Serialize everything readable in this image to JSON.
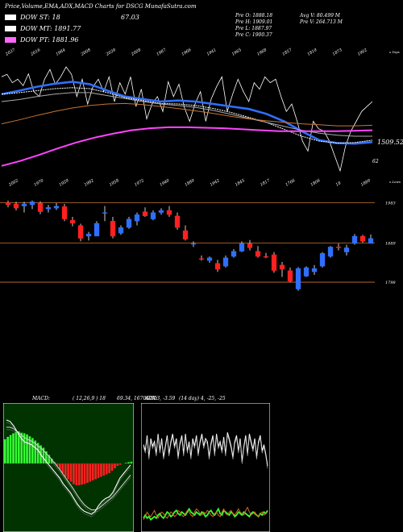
{
  "header": {
    "title": "Price,Volume,EMA,ADX,MACD Charts for DSCG MunafaSutra.com",
    "adx_value": "67.03",
    "ema_lines": [
      {
        "label": "DOW ST: 18",
        "color": "#ffffff"
      },
      {
        "label": "DOW MT: 1891.77",
        "color": "#ffffff"
      },
      {
        "label": "DOW PT: 1881.96",
        "color": "#ff66ff"
      }
    ],
    "ohlc": [
      "Pre   O: 1888.18",
      "Pre   H: 1909.01",
      "Pre   L: 1887.97",
      "Pre   C: 1900.37"
    ],
    "volume": [
      "Avg V: 80.499 M",
      "Pre   V: 264.713 M"
    ]
  },
  "chart_data": [
    {
      "type": "line",
      "title": "",
      "top_tick_labels": [
        "2037",
        "2016",
        "1984",
        "2008",
        "2039",
        "2008",
        "1987",
        "1966",
        "1941",
        "1965",
        "1968",
        "1857",
        "1819",
        "1873",
        "1902"
      ],
      "bottom_tick_labels": [
        "2002",
        "1970",
        "1929",
        "1982",
        "1958",
        "1972",
        "1940",
        "1889",
        "1942",
        "1845",
        "1817",
        "1766",
        "1806",
        "18",
        "1889"
      ],
      "corner_labels": [
        "1509.52",
        "62"
      ],
      "edge_labels": [
        "s Tops",
        "s Lows"
      ],
      "series": [
        {
          "color": "#ffffff",
          "values": [
            1990,
            1995,
            1978,
            1985,
            1972,
            1996,
            1960,
            1950,
            1985,
            2005,
            1975,
            1990,
            2010,
            1995,
            1950,
            1985,
            1935,
            1970,
            1985,
            1960,
            1990,
            1940,
            1978,
            1955,
            1990,
            1930,
            1965,
            1905,
            1935,
            1950,
            1920,
            1980,
            1950,
            1975,
            1928,
            1900,
            1935,
            1960,
            1900,
            1945,
            1970,
            1990,
            1920,
            1955,
            1985,
            1960,
            1940,
            1978,
            1965,
            1990,
            1978,
            1985,
            1950,
            1920,
            1935,
            1900,
            1860,
            1840,
            1900,
            1885,
            1880,
            1860,
            1830,
            1800,
            1850,
            1880,
            1900,
            1920,
            1930,
            1940
          ]
        },
        {
          "color": "#2f6fff",
          "values": [
            1955,
            1962,
            1970,
            1976,
            1980,
            1975,
            1962,
            1950,
            1945,
            1940,
            1942,
            1940,
            1935,
            1930,
            1925,
            1915,
            1900,
            1880,
            1862,
            1856,
            1855,
            1858
          ]
        },
        {
          "color": "#ffffff",
          "values": [
            1955,
            1958,
            1962,
            1966,
            1968,
            1966,
            1958,
            1948,
            1942,
            1936,
            1935,
            1932,
            1926,
            1918,
            1908,
            1898,
            1884,
            1870,
            1860,
            1856,
            1857,
            1862
          ]
        },
        {
          "color": "#aaaaaa",
          "values": [
            1940,
            1944,
            1950,
            1955,
            1958,
            1958,
            1952,
            1946,
            1940,
            1935,
            1932,
            1928,
            1922,
            1914,
            1906,
            1898,
            1890,
            1882,
            1876,
            1872,
            1870,
            1870
          ]
        },
        {
          "color": "#c87533",
          "values": [
            1895,
            1903,
            1912,
            1920,
            1927,
            1932,
            1935,
            1936,
            1934,
            1930,
            1926,
            1921,
            1916,
            1910,
            1905,
            1901,
            1898,
            1895,
            1893,
            1891,
            1891,
            1892
          ]
        },
        {
          "color": "#ff44ff",
          "values": [
            1810,
            1820,
            1832,
            1845,
            1857,
            1867,
            1875,
            1882,
            1886,
            1888,
            1888,
            1887,
            1886,
            1884,
            1882,
            1880,
            1880,
            1880,
            1880,
            1881,
            1882
          ]
        }
      ]
    },
    {
      "type": "bar",
      "title": "",
      "ylabels": [
        "1983",
        "1889",
        "1798"
      ],
      "up_color": "#2f6fff",
      "down_color": "#ff2020",
      "candles": [
        {
          "o": 1983,
          "h": 1988,
          "l": 1972,
          "c": 1978
        },
        {
          "o": 1980,
          "h": 1985,
          "l": 1965,
          "c": 1970
        },
        {
          "o": 1975,
          "h": 1985,
          "l": 1960,
          "c": 1980
        },
        {
          "o": 1978,
          "h": 1988,
          "l": 1968,
          "c": 1985
        },
        {
          "o": 1982,
          "h": 1986,
          "l": 1956,
          "c": 1962
        },
        {
          "o": 1968,
          "h": 1978,
          "l": 1960,
          "c": 1972
        },
        {
          "o": 1970,
          "h": 1982,
          "l": 1966,
          "c": 1975
        },
        {
          "o": 1974,
          "h": 1980,
          "l": 1940,
          "c": 1945
        },
        {
          "o": 1942,
          "h": 1950,
          "l": 1928,
          "c": 1935
        },
        {
          "o": 1930,
          "h": 1934,
          "l": 1893,
          "c": 1900
        },
        {
          "o": 1905,
          "h": 1915,
          "l": 1895,
          "c": 1910
        },
        {
          "o": 1905,
          "h": 1940,
          "l": 1905,
          "c": 1935
        },
        {
          "o": 1958,
          "h": 1975,
          "l": 1940,
          "c": 1960
        },
        {
          "o": 1940,
          "h": 1950,
          "l": 1900,
          "c": 1905
        },
        {
          "o": 1912,
          "h": 1930,
          "l": 1908,
          "c": 1925
        },
        {
          "o": 1925,
          "h": 1950,
          "l": 1922,
          "c": 1945
        },
        {
          "o": 1940,
          "h": 1960,
          "l": 1930,
          "c": 1955
        },
        {
          "o": 1962,
          "h": 1972,
          "l": 1950,
          "c": 1952
        },
        {
          "o": 1945,
          "h": 1965,
          "l": 1942,
          "c": 1960
        },
        {
          "o": 1960,
          "h": 1970,
          "l": 1955,
          "c": 1965
        },
        {
          "o": 1965,
          "h": 1975,
          "l": 1950,
          "c": 1955
        },
        {
          "o": 1952,
          "h": 1960,
          "l": 1920,
          "c": 1925
        },
        {
          "o": 1918,
          "h": 1930,
          "l": 1895,
          "c": 1898
        },
        {
          "o": 1888,
          "h": 1893,
          "l": 1880,
          "c": 1888
        },
        {
          "o": 1853,
          "h": 1860,
          "l": 1848,
          "c": 1852
        },
        {
          "o": 1848,
          "h": 1858,
          "l": 1843,
          "c": 1855
        },
        {
          "o": 1842,
          "h": 1850,
          "l": 1822,
          "c": 1828
        },
        {
          "o": 1835,
          "h": 1860,
          "l": 1832,
          "c": 1855
        },
        {
          "o": 1858,
          "h": 1875,
          "l": 1855,
          "c": 1870
        },
        {
          "o": 1870,
          "h": 1893,
          "l": 1868,
          "c": 1888
        },
        {
          "o": 1888,
          "h": 1896,
          "l": 1872,
          "c": 1878
        },
        {
          "o": 1870,
          "h": 1882,
          "l": 1855,
          "c": 1858
        },
        {
          "o": 1858,
          "h": 1866,
          "l": 1854,
          "c": 1856
        },
        {
          "o": 1862,
          "h": 1868,
          "l": 1820,
          "c": 1825
        },
        {
          "o": 1838,
          "h": 1845,
          "l": 1810,
          "c": 1828
        },
        {
          "o": 1825,
          "h": 1832,
          "l": 1798,
          "c": 1800
        },
        {
          "o": 1782,
          "h": 1833,
          "l": 1778,
          "c": 1830
        },
        {
          "o": 1812,
          "h": 1835,
          "l": 1810,
          "c": 1832
        },
        {
          "o": 1822,
          "h": 1838,
          "l": 1815,
          "c": 1830
        },
        {
          "o": 1835,
          "h": 1868,
          "l": 1832,
          "c": 1865
        },
        {
          "o": 1858,
          "h": 1882,
          "l": 1855,
          "c": 1880
        },
        {
          "o": 1880,
          "h": 1888,
          "l": 1872,
          "c": 1878
        },
        {
          "o": 1868,
          "h": 1885,
          "l": 1860,
          "c": 1878
        },
        {
          "o": 1888,
          "h": 1910,
          "l": 1885,
          "c": 1905
        },
        {
          "o": 1905,
          "h": 1908,
          "l": 1890,
          "c": 1893
        },
        {
          "o": 1888,
          "h": 1909,
          "l": 1888,
          "c": 1900
        }
      ]
    },
    {
      "type": "bar",
      "title": "MACD:",
      "params": "( 12,26,9 ) 18",
      "readout": "69.34,  1670.73",
      "series": [
        {
          "name": "hist",
          "color": "#33ff33",
          "neg_color": "#ff2020",
          "values": [
            40,
            44,
            47,
            50,
            52,
            53,
            51,
            50,
            48,
            45,
            42,
            38,
            34,
            30,
            26,
            20,
            14,
            8,
            2,
            -4,
            -10,
            -16,
            -22,
            -26,
            -30,
            -34,
            -36,
            -36,
            -35,
            -34,
            -32,
            -30,
            -28,
            -26,
            -24,
            -22,
            -20,
            -18,
            -16,
            -12,
            -8,
            -4,
            -2,
            0,
            1,
            2,
            3
          ]
        },
        {
          "name": "macd",
          "color": "#ffffff",
          "values": [
            60,
            58,
            52,
            44,
            36,
            30,
            28,
            26,
            22,
            18,
            10,
            4,
            -2,
            -8,
            -14,
            -20,
            -28,
            -34,
            -40,
            -48,
            -56,
            -62,
            -66,
            -68,
            -70,
            -66,
            -58,
            -52,
            -48,
            -46,
            -40,
            -30,
            -20,
            -14,
            -8,
            -2
          ]
        },
        {
          "name": "signal",
          "color": "#cccccc",
          "values": [
            50,
            50,
            48,
            44,
            40,
            36,
            33,
            31,
            28,
            24,
            20,
            15,
            10,
            4,
            -2,
            -8,
            -15,
            -22,
            -29,
            -36,
            -44,
            -51,
            -57,
            -61,
            -64,
            -64,
            -62,
            -58,
            -54,
            -50,
            -46,
            -40,
            -34,
            -28,
            -22,
            -16
          ]
        }
      ]
    },
    {
      "type": "line",
      "title": "ADX:",
      "params": "(14 day) 4, -25, -25",
      "readout": "67.03,  -3.59",
      "series": [
        {
          "name": "adx",
          "color": "#ffffff",
          "values": [
            56,
            52,
            62,
            48,
            60,
            55,
            58,
            50,
            63,
            52,
            60,
            48,
            55,
            62,
            50,
            58,
            63,
            55,
            60,
            48,
            57,
            62,
            50,
            63,
            52,
            58,
            48,
            60,
            55,
            62,
            50,
            58,
            63,
            55,
            60,
            58,
            48,
            57,
            62,
            50,
            63,
            55,
            58,
            52,
            61,
            50,
            64,
            60,
            55,
            48,
            58,
            62,
            52,
            60,
            45,
            55,
            62,
            50,
            63,
            58,
            53,
            60,
            48,
            58,
            62,
            52,
            56,
            50,
            42
          ]
        },
        {
          "name": "plus-di",
          "color": "#33ff33",
          "values": [
            8,
            10,
            8,
            9,
            7,
            8,
            9,
            8,
            10,
            11,
            9,
            8,
            10,
            12,
            11,
            9,
            10,
            12,
            13,
            11,
            10,
            12,
            11,
            10,
            12,
            14,
            12,
            11,
            10,
            12,
            11,
            10,
            12,
            11,
            9,
            10,
            12,
            13,
            11,
            10,
            12,
            14,
            11,
            10,
            13,
            12,
            11,
            10,
            12,
            11,
            9,
            10,
            12,
            11,
            10,
            12,
            11,
            10,
            9,
            11,
            12,
            11,
            10,
            9,
            11,
            10,
            12,
            11,
            13
          ]
        },
        {
          "name": "minus-di",
          "color": "#d2691e",
          "values": [
            7,
            9,
            12,
            10,
            9,
            11,
            13,
            10,
            8,
            10,
            12,
            11,
            9,
            8,
            10,
            12,
            11,
            9,
            10,
            13,
            12,
            10,
            9,
            11,
            13,
            12,
            10,
            9,
            12,
            14,
            13,
            11,
            10,
            12,
            11,
            13,
            12,
            10,
            9,
            11,
            12,
            10,
            9,
            12,
            14,
            11,
            10,
            12,
            13,
            11,
            10,
            12,
            14,
            12,
            11,
            10,
            13,
            15,
            12,
            10,
            11,
            12,
            10,
            9,
            11,
            12,
            10,
            11,
            12
          ]
        }
      ]
    }
  ]
}
